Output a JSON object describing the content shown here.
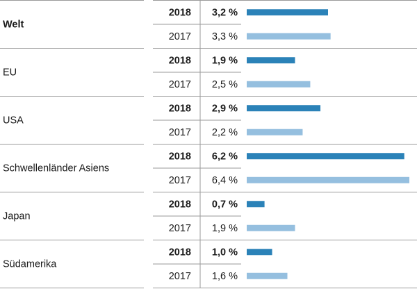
{
  "chart_data": {
    "type": "bar",
    "orientation": "horizontal",
    "value_format": "percent, comma decimal",
    "colors": {
      "current": "#2b82b8",
      "previous": "#95bfdf",
      "rule": "#9a9a9a"
    },
    "xlim": [
      0,
      6.4
    ],
    "groups": [
      {
        "region": "Welt",
        "region_bold": true,
        "rows": [
          {
            "year": "2018",
            "value": 3.2,
            "label": "3,2 %",
            "bold": true
          },
          {
            "year": "2017",
            "value": 3.3,
            "label": "3,3 %",
            "bold": false
          }
        ]
      },
      {
        "region": "EU",
        "region_bold": false,
        "rows": [
          {
            "year": "2018",
            "value": 1.9,
            "label": "1,9 %",
            "bold": true
          },
          {
            "year": "2017",
            "value": 2.5,
            "label": "2,5 %",
            "bold": false
          }
        ]
      },
      {
        "region": "USA",
        "region_bold": false,
        "rows": [
          {
            "year": "2018",
            "value": 2.9,
            "label": "2,9 %",
            "bold": true
          },
          {
            "year": "2017",
            "value": 2.2,
            "label": "2,2 %",
            "bold": false
          }
        ]
      },
      {
        "region": "Schwellenländer Asiens",
        "region_bold": false,
        "rows": [
          {
            "year": "2018",
            "value": 6.2,
            "label": "6,2 %",
            "bold": true
          },
          {
            "year": "2017",
            "value": 6.4,
            "label": "6,4 %",
            "bold": false
          }
        ]
      },
      {
        "region": "Japan",
        "region_bold": false,
        "rows": [
          {
            "year": "2018",
            "value": 0.7,
            "label": "0,7 %",
            "bold": true
          },
          {
            "year": "2017",
            "value": 1.9,
            "label": "1,9 %",
            "bold": false
          }
        ]
      },
      {
        "region": "Südamerika",
        "region_bold": false,
        "rows": [
          {
            "year": "2018",
            "value": 1.0,
            "label": "1,0 %",
            "bold": true
          },
          {
            "year": "2017",
            "value": 1.6,
            "label": "1,6 %",
            "bold": false
          }
        ]
      }
    ]
  }
}
